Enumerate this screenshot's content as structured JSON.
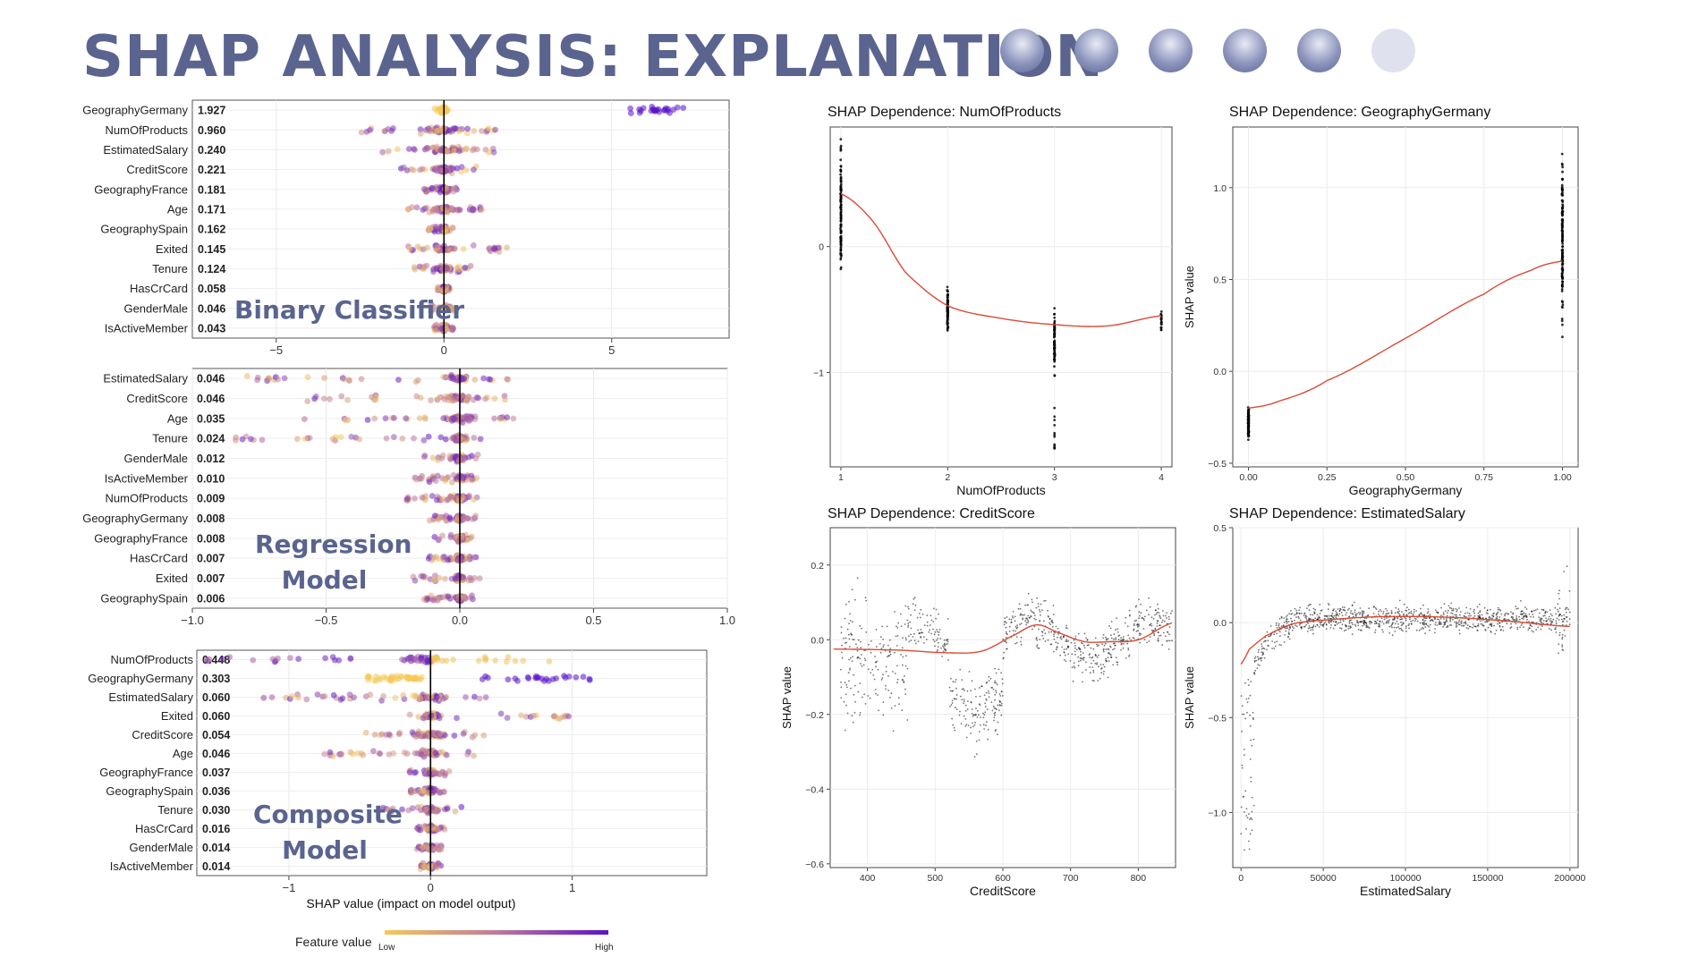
{
  "title": "SHAP ANALYSIS: EXPLANATION",
  "colors": {
    "title": "#5a648f",
    "low": "#f5c95a",
    "high": "#5a12c8",
    "smooth": "#d94b35"
  },
  "captions": {
    "binary": "Binary Classifier",
    "regression_line1": "Regression",
    "regression_line2": "Model",
    "composite_line1": "Composite",
    "composite_line2": "Model"
  },
  "legend": {
    "label": "Feature value",
    "low": "Low",
    "high": "High"
  },
  "chart_data": [
    {
      "type": "scatter",
      "subtype": "shap-beeswarm",
      "name": "Binary Classifier",
      "features": [
        "GeographyGermany",
        "NumOfProducts",
        "EstimatedSalary",
        "CreditScore",
        "GeographyFrance",
        "Age",
        "GeographySpain",
        "Exited",
        "Tenure",
        "HasCrCard",
        "GenderMale",
        "IsActiveMember"
      ],
      "mean_abs": [
        "1.927",
        "0.960",
        "0.240",
        "0.221",
        "0.181",
        "0.171",
        "0.162",
        "0.145",
        "0.124",
        "0.058",
        "0.046",
        "0.043"
      ],
      "xlim": [
        -7.5,
        8.5
      ],
      "xticks": [
        -5,
        0,
        5
      ],
      "xtick_labels": [
        "−5",
        "0",
        "5"
      ],
      "spread": [
        [
          -0.4,
          7.2
        ],
        [
          -2.5,
          1.8
        ],
        [
          -1.9,
          1.6
        ],
        [
          -1.4,
          1.1
        ],
        [
          -0.6,
          0.4
        ],
        [
          -1.1,
          1.2
        ],
        [
          -0.5,
          0.4
        ],
        [
          -1.1,
          1.9
        ],
        [
          -0.9,
          0.8
        ],
        [
          -0.2,
          0.2
        ],
        [
          -0.4,
          0.3
        ],
        [
          -0.3,
          0.3
        ]
      ]
    },
    {
      "type": "scatter",
      "subtype": "shap-beeswarm",
      "name": "Regression Model",
      "features": [
        "EstimatedSalary",
        "CreditScore",
        "Age",
        "Tenure",
        "GenderMale",
        "IsActiveMember",
        "NumOfProducts",
        "GeographyGermany",
        "GeographyFrance",
        "HasCrCard",
        "Exited",
        "GeographySpain"
      ],
      "mean_abs": [
        "0.046",
        "0.046",
        "0.035",
        "0.024",
        "0.012",
        "0.010",
        "0.009",
        "0.008",
        "0.008",
        "0.007",
        "0.007",
        "0.006"
      ],
      "xlim": [
        -1.0,
        1.0
      ],
      "xticks": [
        -1.0,
        -0.5,
        0.0,
        0.5,
        1.0
      ],
      "xtick_labels": [
        "−1.0",
        "−0.5",
        "0.0",
        "0.5",
        "1.0"
      ],
      "spread": [
        [
          -0.82,
          0.2
        ],
        [
          -0.6,
          0.18
        ],
        [
          -0.6,
          0.22
        ],
        [
          -0.84,
          0.1
        ],
        [
          -0.14,
          0.08
        ],
        [
          -0.18,
          0.07
        ],
        [
          -0.2,
          0.07
        ],
        [
          -0.12,
          0.06
        ],
        [
          -0.1,
          0.05
        ],
        [
          -0.12,
          0.06
        ],
        [
          -0.18,
          0.08
        ],
        [
          -0.16,
          0.07
        ]
      ]
    },
    {
      "type": "scatter",
      "subtype": "shap-beeswarm",
      "name": "Composite Model",
      "features": [
        "NumOfProducts",
        "GeographyGermany",
        "EstimatedSalary",
        "Exited",
        "CreditScore",
        "Age",
        "GeographyFrance",
        "GeographySpain",
        "Tenure",
        "HasCrCard",
        "GenderMale",
        "IsActiveMember"
      ],
      "mean_abs": [
        "0.448",
        "0.303",
        "0.060",
        "0.060",
        "0.054",
        "0.046",
        "0.037",
        "0.036",
        "0.030",
        "0.016",
        "0.014",
        "0.014"
      ],
      "xlim": [
        -1.65,
        1.95
      ],
      "xticks": [
        -1,
        0,
        1
      ],
      "xtick_labels": [
        "−1",
        "0",
        "1"
      ],
      "xlabel": "SHAP value (impact on model output)",
      "spread": [
        [
          -1.6,
          0.85
        ],
        [
          -0.45,
          1.25
        ],
        [
          -1.2,
          0.5
        ],
        [
          -0.2,
          1.0
        ],
        [
          -0.55,
          0.4
        ],
        [
          -0.85,
          0.35
        ],
        [
          -0.15,
          0.15
        ],
        [
          -0.15,
          0.12
        ],
        [
          -0.35,
          0.25
        ],
        [
          -0.1,
          0.1
        ],
        [
          -0.1,
          0.08
        ],
        [
          -0.1,
          0.08
        ]
      ]
    },
    {
      "type": "scatter",
      "subtype": "dependence",
      "title": "SHAP Dependence: NumOfProducts",
      "xlabel": "NumOfProducts",
      "ylabel": "",
      "xlim": [
        0.9,
        4.1
      ],
      "ylim": [
        -1.75,
        0.95
      ],
      "xticks": [
        1,
        2,
        3,
        4
      ],
      "xtick_labels": [
        "1",
        "2",
        "3",
        "4"
      ],
      "yticks": [
        0,
        -1
      ],
      "ytick_labels": [
        "0",
        "−1"
      ],
      "smooth_x": [
        1,
        1.3,
        1.6,
        2,
        2.5,
        3,
        3.5,
        4
      ],
      "smooth_y": [
        0.42,
        0.2,
        -0.2,
        -0.47,
        -0.57,
        -0.62,
        -0.63,
        -0.55
      ]
    },
    {
      "type": "scatter",
      "subtype": "dependence",
      "title": "SHAP Dependence: GeographyGermany",
      "xlabel": "GeographyGermany",
      "ylabel": "SHAP value",
      "xlim": [
        -0.05,
        1.05
      ],
      "ylim": [
        -0.52,
        1.33
      ],
      "xticks": [
        0,
        0.25,
        0.5,
        0.75,
        1
      ],
      "xtick_labels": [
        "0.00",
        "0.25",
        "0.50",
        "0.75",
        "1.00"
      ],
      "yticks": [
        -0.5,
        0,
        0.5,
        1
      ],
      "ytick_labels": [
        "−0.5",
        "0.0",
        "0.5",
        "1.0"
      ],
      "smooth_x": [
        0,
        0.1,
        0.25,
        0.5,
        0.75,
        0.9,
        1
      ],
      "smooth_y": [
        -0.2,
        -0.16,
        -0.05,
        0.18,
        0.42,
        0.55,
        0.6
      ]
    },
    {
      "type": "scatter",
      "subtype": "dependence",
      "title": "SHAP Dependence: CreditScore",
      "xlabel": "CreditScore",
      "ylabel": "SHAP value",
      "xlim": [
        345,
        855
      ],
      "ylim": [
        -0.61,
        0.3
      ],
      "xticks": [
        400,
        500,
        600,
        700,
        800
      ],
      "xtick_labels": [
        "400",
        "500",
        "600",
        "700",
        "800"
      ],
      "yticks": [
        -0.6,
        -0.4,
        -0.2,
        0,
        0.2
      ],
      "ytick_labels": [
        "−0.6",
        "−0.4",
        "−0.2",
        "0.0",
        "0.2"
      ],
      "smooth_x": [
        350,
        450,
        520,
        570,
        620,
        650,
        680,
        720,
        760,
        800,
        850
      ],
      "smooth_y": [
        -0.025,
        -0.028,
        -0.035,
        -0.03,
        0.015,
        0.04,
        0.02,
        -0.005,
        -0.005,
        0.0,
        0.045
      ]
    },
    {
      "type": "scatter",
      "subtype": "dependence",
      "title": "SHAP Dependence: EstimatedSalary",
      "xlabel": "EstimatedSalary",
      "ylabel": "SHAP value",
      "xlim": [
        -5000,
        205000
      ],
      "ylim": [
        -1.29,
        0.5
      ],
      "xticks": [
        0,
        50000,
        100000,
        150000,
        200000
      ],
      "xtick_labels": [
        "0",
        "50000",
        "100000",
        "150000",
        "200000"
      ],
      "yticks": [
        -1,
        -0.5,
        0,
        0.5
      ],
      "ytick_labels": [
        "−1.0",
        "−0.5",
        "0.0",
        "0.5"
      ],
      "smooth_x": [
        0,
        5000,
        15000,
        30000,
        45000,
        80000,
        120000,
        160000,
        200000
      ],
      "smooth_y": [
        -0.22,
        -0.14,
        -0.07,
        -0.01,
        0.01,
        0.03,
        0.03,
        0.01,
        -0.02
      ]
    }
  ]
}
